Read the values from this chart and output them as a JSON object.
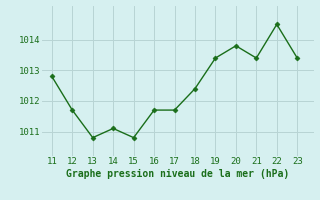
{
  "x": [
    11,
    12,
    13,
    14,
    15,
    16,
    17,
    18,
    19,
    20,
    21,
    22,
    23
  ],
  "y": [
    1012.8,
    1011.7,
    1010.8,
    1011.1,
    1010.8,
    1011.7,
    1011.7,
    1012.4,
    1013.4,
    1013.8,
    1013.4,
    1014.5,
    1013.4
  ],
  "line_color": "#1a6e1a",
  "marker": "D",
  "marker_size": 2.5,
  "bg_color": "#d6f0f0",
  "grid_color": "#b8d4d4",
  "xlabel": "Graphe pression niveau de la mer (hPa)",
  "xlabel_color": "#1a6e1a",
  "xlabel_fontsize": 7.0,
  "tick_color": "#1a6e1a",
  "tick_fontsize": 6.5,
  "yticks": [
    1011,
    1012,
    1013,
    1014
  ],
  "ylim": [
    1010.2,
    1015.1
  ],
  "xlim": [
    10.5,
    23.8
  ],
  "xticks": [
    11,
    12,
    13,
    14,
    15,
    16,
    17,
    18,
    19,
    20,
    21,
    22,
    23
  ]
}
